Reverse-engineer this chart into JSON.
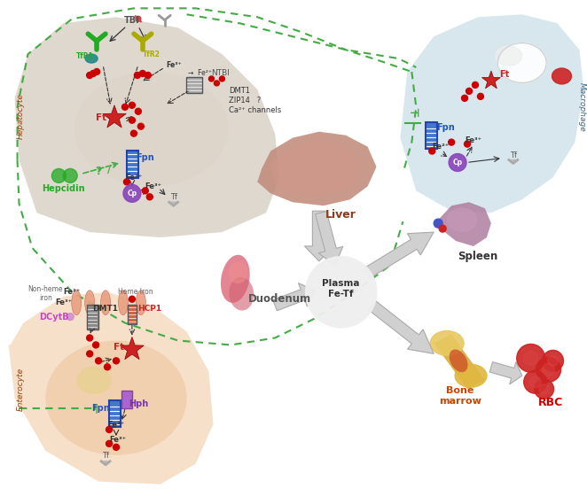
{
  "bg_color": "#ffffff",
  "hepatocyte_bg": "#c8bfb0",
  "hepatocyte_cell_bg": "#ddd5c8",
  "enterocyte_bg": "#f0c8a0",
  "enterocyte_cell_bg": "#e8b888",
  "macrophage_bg": "#b8d4e0",
  "green_dashed_color": "#44aa44",
  "liver_label_color": "#8b3a1a",
  "hepatocyte_label_color": "#8b4513",
  "enterocyte_label_color": "#8b4513",
  "macrophage_label_color": "#336688",
  "plasma_label": "Plasma\nFe-Tf",
  "plasma_label_color": "#333333",
  "duodenum_label": "Duodenum",
  "duodenum_label_color": "#555555",
  "bone_marrow_label": "Bone\nmarrow",
  "bone_marrow_label_color": "#cc4400",
  "rbc_label": "RBC",
  "rbc_label_color": "#cc0000",
  "spleen_label": "Spleen",
  "spleen_label_color": "#333333",
  "hepcidin_color": "#22aa22",
  "fpn_color": "#2255bb",
  "ft_color": "#cc2222",
  "cp_color": "#7733aa",
  "tf_color": "#555555",
  "dmt1_color": "#333333",
  "dcytb_color": "#cc44cc",
  "hph_color": "#7733aa",
  "hcp1_color": "#cc2222",
  "tbi_color": "#555555",
  "ntbi_color": "#555555",
  "tfr1_color": "#22aa22",
  "tfr2_color": "#999900",
  "red_dot_color": "#cc0000",
  "arrow_color": "#555555",
  "big_arrow_color": "#cccccc",
  "big_arrow_edge": "#aaaaaa"
}
